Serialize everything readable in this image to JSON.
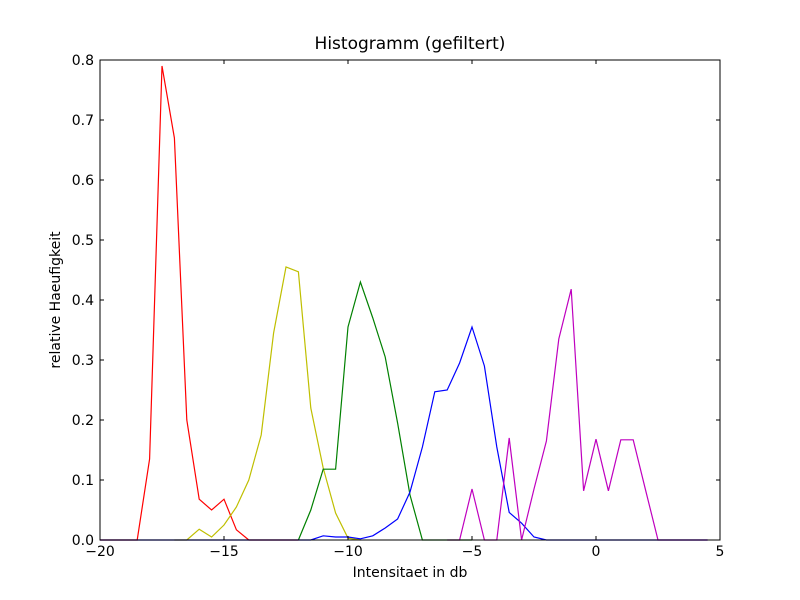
{
  "chart_data": {
    "type": "line",
    "title": "Histogramm (gefiltert)",
    "xlabel": "Intensitaet in db",
    "ylabel": "relative Haeufigkeit",
    "xlim": [
      -20,
      5
    ],
    "ylim": [
      0,
      0.8
    ],
    "xticks": [
      -20,
      -15,
      -10,
      -5,
      0,
      5
    ],
    "xtick_labels": [
      "−20",
      "−15",
      "−10",
      "−5",
      "0",
      "5"
    ],
    "yticks": [
      0.0,
      0.1,
      0.2,
      0.3,
      0.4,
      0.5,
      0.6,
      0.7,
      0.8
    ],
    "ytick_labels": [
      "0.0",
      "0.1",
      "0.2",
      "0.3",
      "0.4",
      "0.5",
      "0.6",
      "0.7",
      "0.8"
    ],
    "grid": false,
    "legend": "none",
    "series": [
      {
        "color": "#ff0000",
        "points": [
          [
            -20,
            0
          ],
          [
            -18.5,
            0
          ],
          [
            -18,
            0.135
          ],
          [
            -17.5,
            0.79
          ],
          [
            -17,
            0.67
          ],
          [
            -16.5,
            0.2
          ],
          [
            -16,
            0.068
          ],
          [
            -15.5,
            0.05
          ],
          [
            -15,
            0.068
          ],
          [
            -14.5,
            0.017
          ],
          [
            -14,
            0
          ],
          [
            -12,
            0
          ]
        ]
      },
      {
        "color": "#bfbf00",
        "points": [
          [
            -17,
            0
          ],
          [
            -16.5,
            0
          ],
          [
            -16,
            0.018
          ],
          [
            -15.5,
            0.005
          ],
          [
            -15,
            0.025
          ],
          [
            -14.5,
            0.055
          ],
          [
            -14,
            0.1
          ],
          [
            -13.5,
            0.175
          ],
          [
            -13,
            0.345
          ],
          [
            -12.5,
            0.455
          ],
          [
            -12,
            0.447
          ],
          [
            -11.5,
            0.22
          ],
          [
            -11,
            0.12
          ],
          [
            -10.5,
            0.045
          ],
          [
            -10,
            0.003
          ],
          [
            -9.5,
            0
          ]
        ]
      },
      {
        "color": "#008000",
        "points": [
          [
            -12,
            0
          ],
          [
            -11.5,
            0.05
          ],
          [
            -11,
            0.118
          ],
          [
            -10.5,
            0.118
          ],
          [
            -10,
            0.355
          ],
          [
            -9.5,
            0.43
          ],
          [
            -9,
            0.37
          ],
          [
            -8.5,
            0.305
          ],
          [
            -8,
            0.195
          ],
          [
            -7.5,
            0.075
          ],
          [
            -7,
            0
          ],
          [
            -5,
            0
          ]
        ]
      },
      {
        "color": "#0000ff",
        "points": [
          [
            -20,
            0
          ],
          [
            -11.5,
            0
          ],
          [
            -11,
            0.007
          ],
          [
            -10.5,
            0.005
          ],
          [
            -10,
            0.005
          ],
          [
            -9.5,
            0.002
          ],
          [
            -9,
            0.007
          ],
          [
            -8.5,
            0.02
          ],
          [
            -8,
            0.035
          ],
          [
            -7.5,
            0.08
          ],
          [
            -7,
            0.155
          ],
          [
            -6.5,
            0.247
          ],
          [
            -6,
            0.25
          ],
          [
            -5.5,
            0.295
          ],
          [
            -5,
            0.355
          ],
          [
            -4.5,
            0.29
          ],
          [
            -4,
            0.155
          ],
          [
            -3.5,
            0.046
          ],
          [
            -3,
            0.028
          ],
          [
            -2.5,
            0.005
          ],
          [
            -2,
            0
          ],
          [
            4.5,
            0
          ]
        ]
      },
      {
        "color": "#bf00bf",
        "points": [
          [
            -6,
            0
          ],
          [
            -5.5,
            0
          ],
          [
            -5,
            0.085
          ],
          [
            -4.5,
            0
          ],
          [
            -4,
            0
          ],
          [
            -3.5,
            0.17
          ],
          [
            -3,
            0
          ],
          [
            -2.5,
            0.085
          ],
          [
            -2,
            0.165
          ],
          [
            -1.5,
            0.335
          ],
          [
            -1,
            0.418
          ],
          [
            -0.5,
            0.082
          ],
          [
            0,
            0.168
          ],
          [
            0.5,
            0.082
          ],
          [
            1,
            0.167
          ],
          [
            1.5,
            0.167
          ],
          [
            2,
            0.083
          ],
          [
            2.5,
            0
          ],
          [
            4.5,
            0
          ]
        ]
      }
    ]
  }
}
